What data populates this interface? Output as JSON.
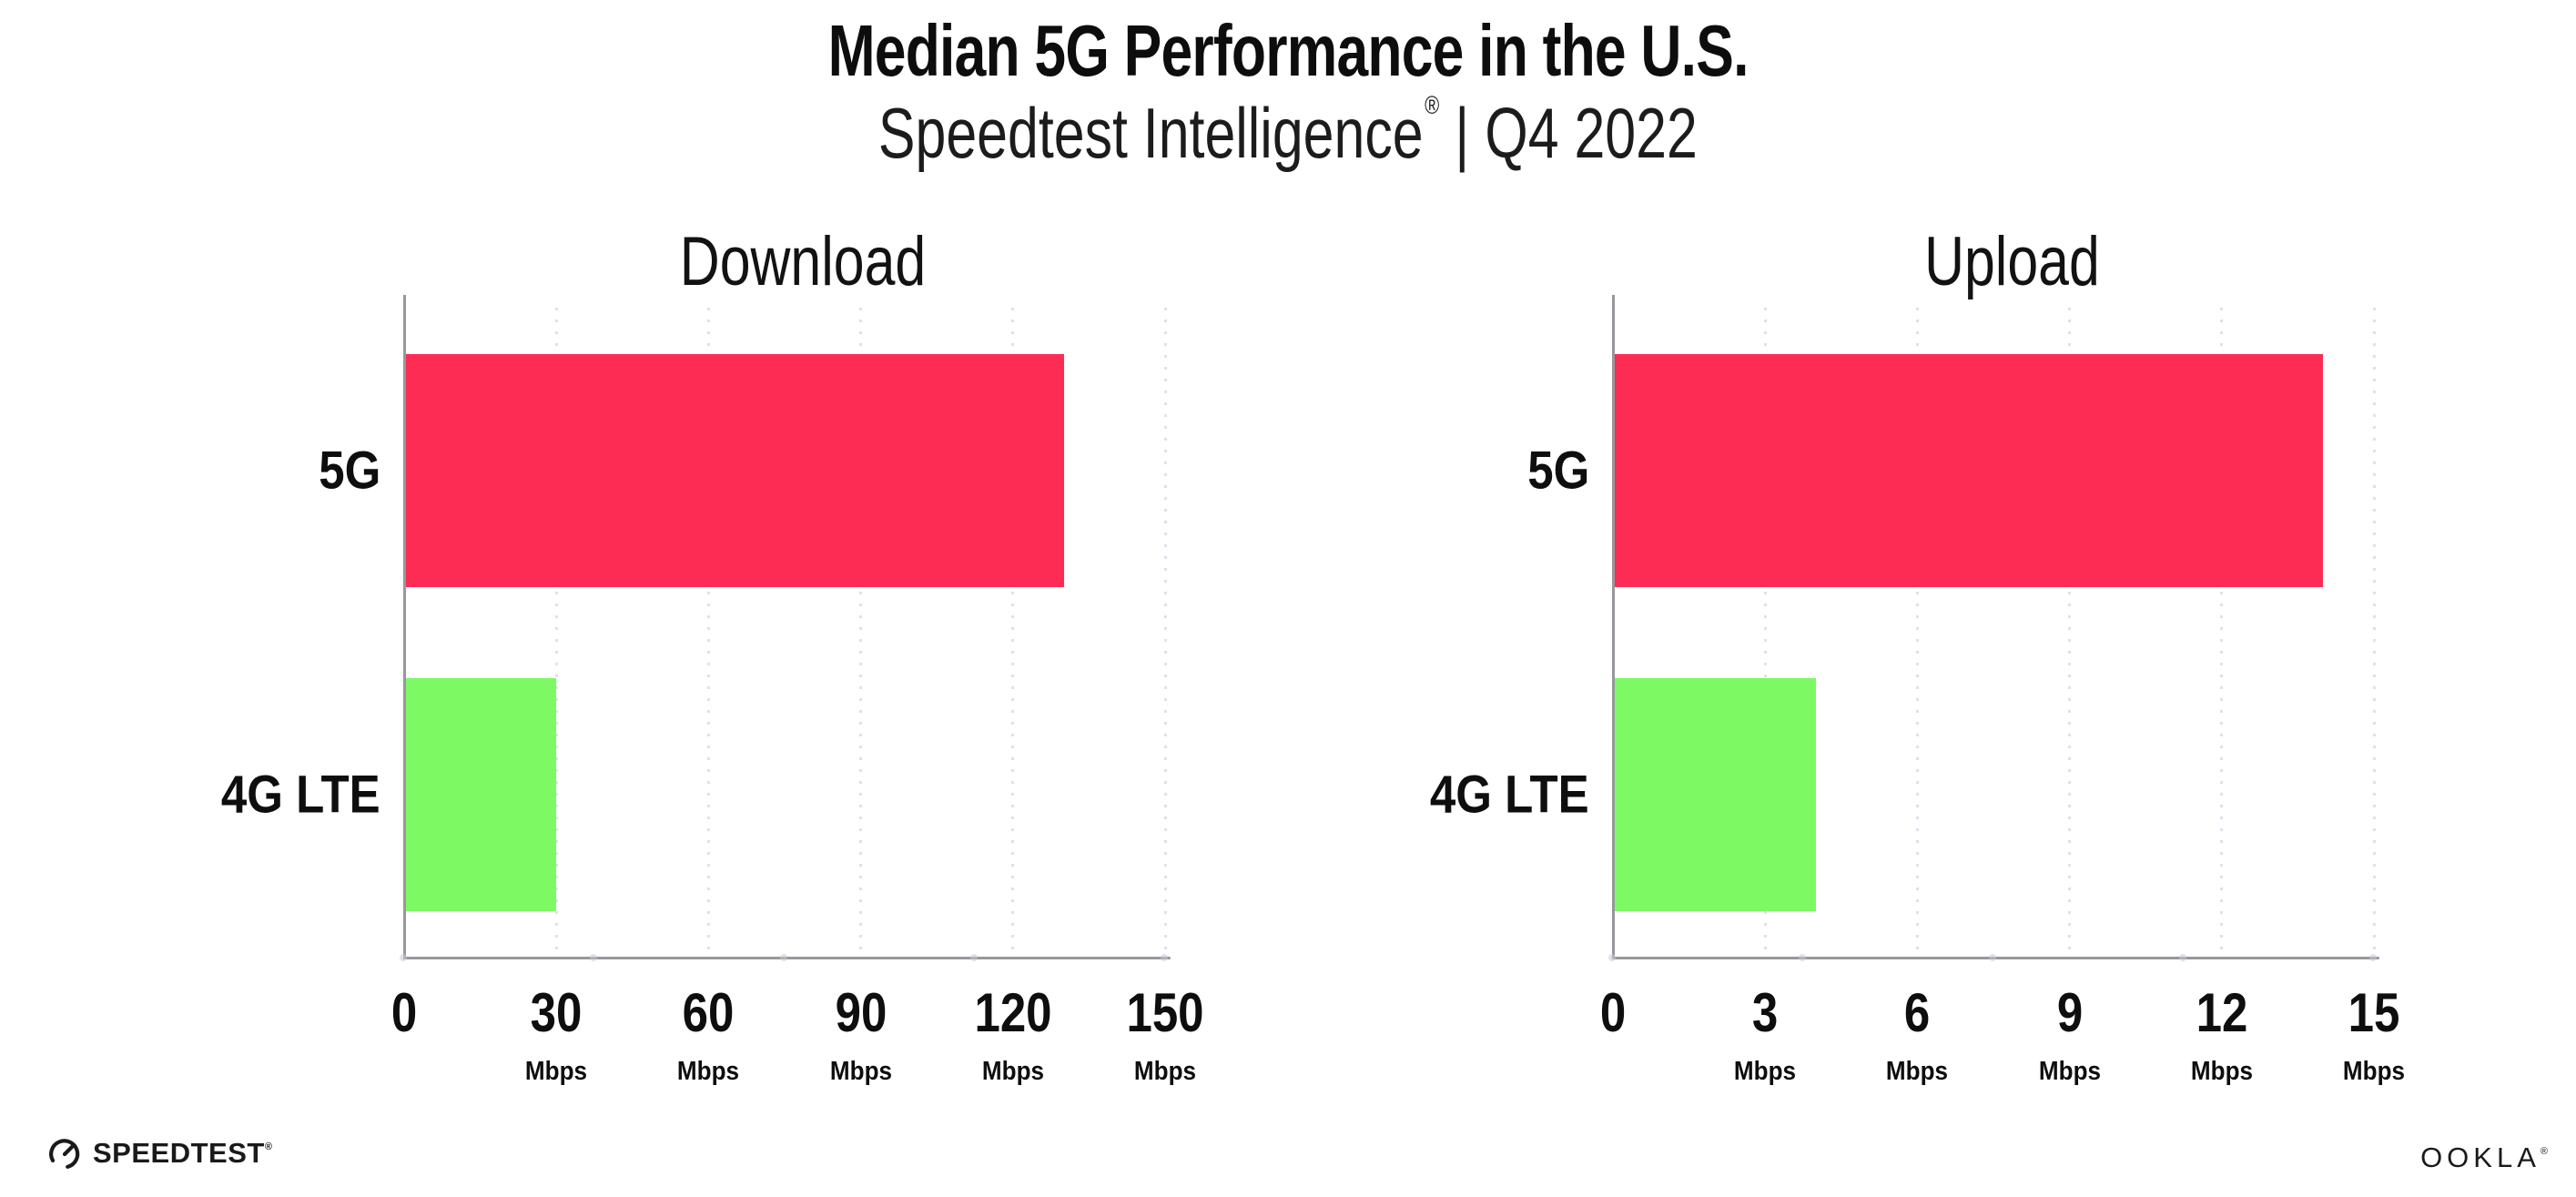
{
  "page": {
    "title": "Median 5G Performance in the U.S.",
    "subtitle_brand": "Speedtest Intelligence",
    "subtitle_reg_mark": "®",
    "subtitle_separator": "|",
    "subtitle_period": "Q4 2022"
  },
  "chart_data": [
    {
      "type": "bar",
      "orientation": "horizontal",
      "title": "Download",
      "categories": [
        "5G",
        "4G LTE"
      ],
      "values": [
        130,
        30
      ],
      "unit": "Mbps",
      "xlim": [
        0,
        150
      ],
      "xticks": [
        0,
        30,
        60,
        90,
        120,
        150
      ],
      "tick_unit_label": "Mbps",
      "grid": "dotted-vertical",
      "legend": "none",
      "bar_colors": [
        "#FC2C55",
        "#7DF964"
      ]
    },
    {
      "type": "bar",
      "orientation": "horizontal",
      "title": "Upload",
      "categories": [
        "5G",
        "4G LTE"
      ],
      "values": [
        14,
        4
      ],
      "unit": "Mbps",
      "xlim": [
        0,
        15
      ],
      "xticks": [
        0,
        3,
        6,
        9,
        12,
        15
      ],
      "tick_unit_label": "Mbps",
      "grid": "dotted-vertical",
      "legend": "none",
      "bar_colors": [
        "#FC2C55",
        "#7DF964"
      ]
    }
  ],
  "footer": {
    "speedtest_logo_text": "SPEEDTEST",
    "speedtest_reg_mark": "®",
    "ookla_logo_text": "OOKLA",
    "ookla_reg_mark": "®"
  },
  "colors": {
    "bar_5g": "#FC2C55",
    "bar_4g_lte": "#7DF964",
    "axis": "#97979C",
    "gridline": "#E0E0EA",
    "text": "#141414",
    "background": "#FFFFFF"
  }
}
